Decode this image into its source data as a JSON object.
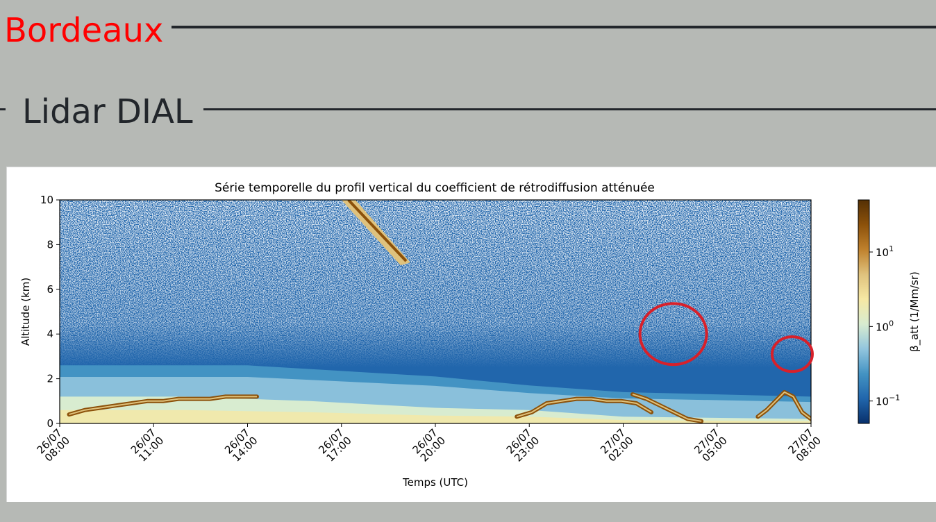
{
  "header": {
    "site_title": "Bordeaux",
    "section_title": "Lidar DIAL"
  },
  "colors": {
    "site_title": "#ff0000",
    "page_background": "#b6b9b5",
    "rules": "#22262b",
    "annotation_circles": "#d8202a"
  },
  "chart_data": {
    "type": "heatmap",
    "title": "Série temporelle du profil vertical du coefficient de rétrodiffusion atténuée",
    "xlabel": "Temps (UTC)",
    "ylabel": "Altitude (km)",
    "ylim": [
      0,
      10
    ],
    "xlim_hours": [
      0,
      24
    ],
    "y_ticks": [
      "0",
      "2",
      "4",
      "6",
      "8",
      "10"
    ],
    "x_ticks": [
      {
        "date": "26/07",
        "time": "08:00"
      },
      {
        "date": "26/07",
        "time": "11:00"
      },
      {
        "date": "26/07",
        "time": "14:00"
      },
      {
        "date": "26/07",
        "time": "17:00"
      },
      {
        "date": "26/07",
        "time": "20:00"
      },
      {
        "date": "26/07",
        "time": "23:00"
      },
      {
        "date": "27/07",
        "time": "02:00"
      },
      {
        "date": "27/07",
        "time": "05:00"
      },
      {
        "date": "27/07",
        "time": "08:00"
      }
    ],
    "colorbar": {
      "label": "β_att (1/Mm/sr)",
      "scale": "log",
      "range": [
        0.05,
        50
      ],
      "ticks": [
        {
          "base": "10",
          "exp": "1"
        },
        {
          "base": "10",
          "exp": "0"
        },
        {
          "base": "10",
          "exp": "−1"
        }
      ],
      "colors": [
        "#08306b",
        "#2166ac",
        "#4393c3",
        "#92c5de",
        "#d8ecd0",
        "#f6e8a4",
        "#dfc27d",
        "#bf812d",
        "#8c510a",
        "#543005"
      ]
    },
    "layers": {
      "boundary_layer_top_km": [
        {
          "t": 0,
          "v": 2.6
        },
        {
          "t": 6,
          "v": 2.6
        },
        {
          "t": 12,
          "v": 2.1
        },
        {
          "t": 15,
          "v": 1.7
        },
        {
          "t": 18,
          "v": 1.4
        },
        {
          "t": 24,
          "v": 1.2
        }
      ],
      "low_aerosol_top_km": [
        {
          "t": 0,
          "v": 1.2
        },
        {
          "t": 4,
          "v": 1.2
        },
        {
          "t": 8,
          "v": 1.0
        },
        {
          "t": 12,
          "v": 0.7
        },
        {
          "t": 15,
          "v": 0.6
        },
        {
          "t": 18,
          "v": 0.3
        },
        {
          "t": 24,
          "v": 0.2
        }
      ],
      "cloud_segments": [
        {
          "t0": 0.3,
          "t1": 6.3,
          "alt_km": [
            0.4,
            0.6,
            0.7,
            0.8,
            0.9,
            1.0,
            1.0,
            1.1,
            1.1,
            1.1,
            1.2,
            1.2,
            1.2
          ]
        },
        {
          "t0": 14.6,
          "t1": 18.9,
          "alt_km": [
            0.3,
            0.5,
            0.9,
            1.0,
            1.1,
            1.1,
            1.0,
            1.0,
            0.9,
            0.5
          ]
        },
        {
          "t0": 18.3,
          "t1": 20.5,
          "alt_km": [
            1.3,
            1.1,
            0.8,
            0.5,
            0.2,
            0.1
          ]
        },
        {
          "t0": 22.3,
          "t1": 24.0,
          "alt_km": [
            0.3,
            0.6,
            1.0,
            1.4,
            1.2,
            0.5,
            0.2
          ]
        }
      ],
      "cirrus": [
        {
          "t0": 9.0,
          "t1": 11.2,
          "alt_top_km": 9.6,
          "alt_bottom_km": 7.2
        }
      ]
    },
    "annotations": [
      {
        "shape": "circle",
        "t": 19.6,
        "alt_km": 4.0
      },
      {
        "shape": "circle",
        "t": 23.4,
        "alt_km": 3.1
      }
    ]
  }
}
